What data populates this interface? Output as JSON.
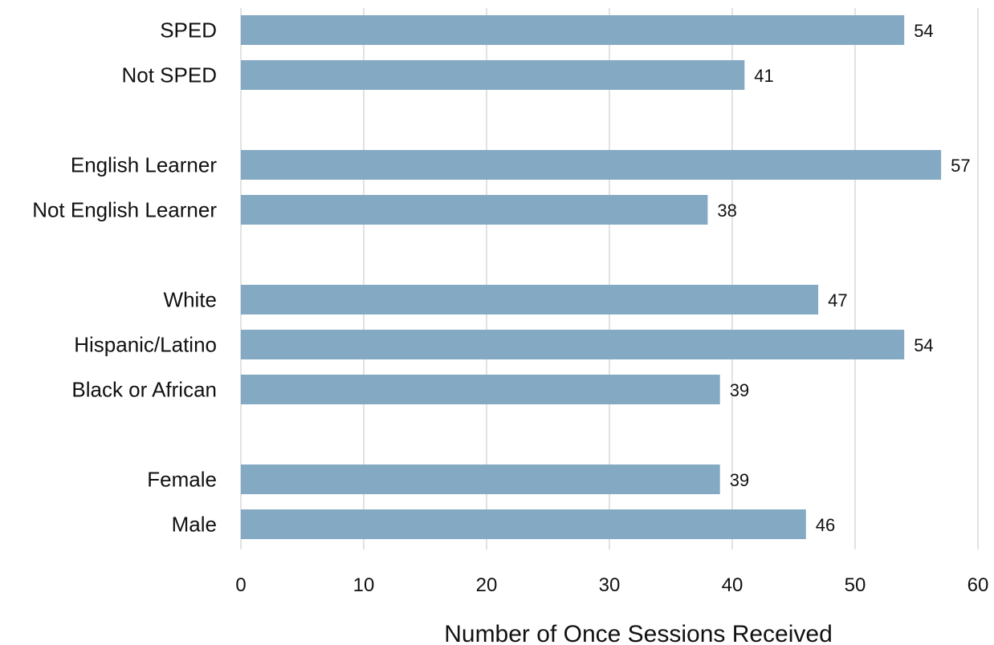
{
  "chart_data": {
    "type": "bar",
    "orientation": "horizontal",
    "title": "",
    "xlabel": "Number of Once Sessions Received",
    "ylabel": "",
    "xlim": [
      0,
      60
    ],
    "xticks": [
      0,
      10,
      20,
      30,
      40,
      50,
      60
    ],
    "grid": "vertical",
    "bar_color": "#84a9c3",
    "groups": [
      {
        "items": [
          {
            "label": "SPED",
            "value": 54
          },
          {
            "label": "Not SPED",
            "value": 41
          }
        ]
      },
      {
        "items": [
          {
            "label": "English Learner",
            "value": 57
          },
          {
            "label": "Not English Learner",
            "value": 38
          }
        ]
      },
      {
        "items": [
          {
            "label": "White",
            "value": 47
          },
          {
            "label": "Hispanic/Latino",
            "value": 54
          },
          {
            "label": "Black or African",
            "value": 39
          }
        ]
      },
      {
        "items": [
          {
            "label": "Female",
            "value": 39
          },
          {
            "label": "Male",
            "value": 46
          }
        ]
      }
    ]
  }
}
